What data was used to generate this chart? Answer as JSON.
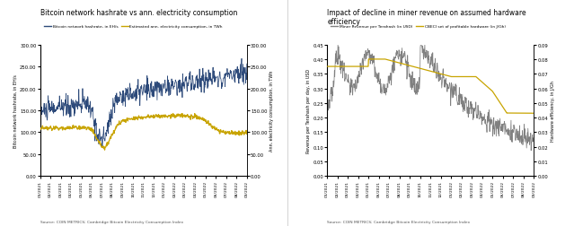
{
  "chart1": {
    "title": "Bitcoin network hashrate vs ann. electricity consumption",
    "legend": [
      "Bitcoin network hashrate, in EH/s",
      "Estimated ann. electricity consumption, in TWh"
    ],
    "line1_color": "#2d4a7a",
    "line2_color": "#c8a400",
    "ylabel_left": "Bitcoin network hashrate, in EH/s",
    "ylabel_right": "Ann. electricity consumption, in TWh",
    "ylim": [
      0,
      300
    ],
    "yticks": [
      0.0,
      50.0,
      100.0,
      150.0,
      200.0,
      250.0,
      300.0
    ],
    "source": "Source: COIN METRICS; Cambridge Bitcoin Electricity Consumption Index",
    "x_labels": [
      "01/2021",
      "02/2021",
      "03/2021",
      "04/2021",
      "05/2021",
      "06/2021",
      "07/2021",
      "08/2021",
      "09/2021",
      "10/2021",
      "11/2021",
      "12/2021",
      "01/2022",
      "02/2022",
      "03/2022",
      "04/2022",
      "05/2022",
      "06/2022",
      "07/2022",
      "08/2022",
      "09/2022"
    ]
  },
  "chart2": {
    "title": "Impact of decline in miner revenue on assumed hardware\nefficiency",
    "legend": [
      "Miner Revenue per Terahash (in USD)",
      "CBECI set of profitable hardware (in J/Gh)"
    ],
    "line1_color": "#808080",
    "line2_color": "#c8a400",
    "ylabel_left": "Revenue per Terahash per day, in USD",
    "ylabel_right": "Hardware efficiency, in J/Gh",
    "ylim_left": [
      0.0,
      0.45
    ],
    "ylim_right": [
      0.0,
      0.09
    ],
    "yticks_left": [
      0.0,
      0.05,
      0.1,
      0.15,
      0.2,
      0.25,
      0.3,
      0.35,
      0.4,
      0.45
    ],
    "yticks_right": [
      0.0,
      0.01,
      0.02,
      0.03,
      0.04,
      0.05,
      0.06,
      0.07,
      0.08,
      0.09
    ],
    "source": "Source: COIN METRICS; Cambridge Bitcoin Electricity Consumption Index",
    "x_labels": [
      "01/2021",
      "02/2021",
      "03/2021",
      "04/2021",
      "05/2021",
      "06/2021",
      "07/2021",
      "08/2021",
      "09/2021",
      "10/2021",
      "11/2021",
      "12/2021",
      "01/2022",
      "02/2022",
      "03/2022",
      "04/2022",
      "05/2022",
      "06/2022",
      "07/2022",
      "08/2022",
      "09/2022"
    ]
  }
}
